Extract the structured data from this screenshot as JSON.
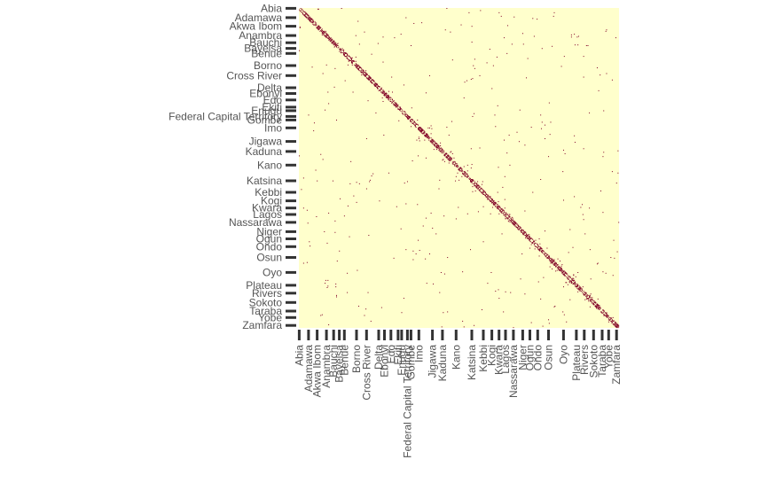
{
  "chart_data": {
    "type": "heatmap",
    "title": "",
    "xlabel": "",
    "ylabel": "",
    "states": [
      "Abia",
      "Adamawa",
      "Akwa Ibom",
      "Anambra",
      "Bauchi",
      "Bayelsa",
      "Benue",
      "Borno",
      "Cross River",
      "Delta",
      "Ebonyi",
      "Edo",
      "Ekiti",
      "Enugu",
      "Federal Capital Territory",
      "Gombe",
      "Imo",
      "Jigawa",
      "Kaduna",
      "Kano",
      "Katsina",
      "Kebbi",
      "Kogi",
      "Kwara",
      "Lagos",
      "Nassarawa",
      "Niger",
      "Ogun",
      "Ondo",
      "Osun",
      "Oyo",
      "Plateau",
      "Rivers",
      "Sokoto",
      "Taraba",
      "Yobe",
      "Zamfara"
    ],
    "tick_positions": [
      0,
      13,
      25,
      38,
      48,
      56,
      63,
      80,
      94,
      111,
      119,
      128,
      138,
      143,
      151,
      156,
      167,
      186,
      200,
      219,
      241,
      257,
      269,
      279,
      288,
      299,
      312,
      322,
      333,
      348,
      369,
      387,
      398,
      411,
      423,
      432,
      443
    ],
    "n": 447,
    "colors": {
      "background": "#ffffcc",
      "cell": "#800026",
      "axis": "#333333",
      "label": "#555555"
    },
    "diagonal_density": "dense",
    "off_diagonal_density": "sparse"
  }
}
